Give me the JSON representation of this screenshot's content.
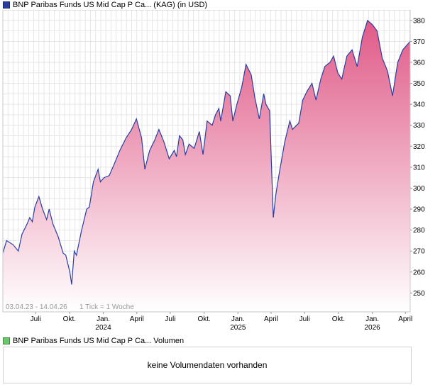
{
  "price_legend": {
    "label": "BNP Paribas Funds US Mid Cap P Ca... (KAG) (in USD)"
  },
  "volume_legend": {
    "label": "BNP Paribas Funds US Mid Cap P Ca... Volumen"
  },
  "volume_panel": {
    "message": "keine Volumendaten vorhanden"
  },
  "chart_data": {
    "type": "area",
    "title": "",
    "date_range": "03.04.23 - 14.04.26",
    "tick_note": "1 Tick = 1 Woche",
    "ylim": [
      241,
      385
    ],
    "y_ticks": [
      250,
      260,
      270,
      280,
      290,
      300,
      310,
      320,
      330,
      340,
      350,
      360,
      370,
      380
    ],
    "x_ticks": [
      {
        "date": "2023-07-01",
        "label": "Juli",
        "year": ""
      },
      {
        "date": "2023-10-01",
        "label": "Okt.",
        "year": ""
      },
      {
        "date": "2024-01-01",
        "label": "Jan.",
        "year": "2024"
      },
      {
        "date": "2024-04-01",
        "label": "April",
        "year": ""
      },
      {
        "date": "2024-07-01",
        "label": "Juli",
        "year": ""
      },
      {
        "date": "2024-10-01",
        "label": "Okt.",
        "year": ""
      },
      {
        "date": "2025-01-01",
        "label": "Jan.",
        "year": "2025"
      },
      {
        "date": "2025-04-01",
        "label": "April",
        "year": ""
      },
      {
        "date": "2025-07-01",
        "label": "Juli",
        "year": ""
      },
      {
        "date": "2025-10-01",
        "label": "Okt.",
        "year": ""
      },
      {
        "date": "2026-01-01",
        "label": "Jan.",
        "year": "2026"
      },
      {
        "date": "2026-04-01",
        "label": "April",
        "year": ""
      }
    ],
    "x_start": "2023-04-03",
    "x_end": "2026-04-14",
    "line_color": "#2a3ea0",
    "fill_top_color": "#e05a88",
    "fill_bottom_color": "#ffffff",
    "grid": true,
    "series": [
      {
        "values": [
          [
            "2023-04-03",
            269
          ],
          [
            "2023-04-13",
            275
          ],
          [
            "2023-05-01",
            273
          ],
          [
            "2023-05-15",
            270
          ],
          [
            "2023-05-25",
            278
          ],
          [
            "2023-06-08",
            283
          ],
          [
            "2023-06-15",
            286
          ],
          [
            "2023-06-22",
            284
          ],
          [
            "2023-06-29",
            291
          ],
          [
            "2023-07-10",
            296
          ],
          [
            "2023-07-20",
            290
          ],
          [
            "2023-07-31",
            285
          ],
          [
            "2023-08-07",
            290
          ],
          [
            "2023-08-17",
            283
          ],
          [
            "2023-08-31",
            277
          ],
          [
            "2023-09-14",
            269
          ],
          [
            "2023-09-21",
            268
          ],
          [
            "2023-10-02",
            260
          ],
          [
            "2023-10-07",
            254
          ],
          [
            "2023-10-14",
            270
          ],
          [
            "2023-10-20",
            268
          ],
          [
            "2023-11-03",
            280
          ],
          [
            "2023-11-17",
            290
          ],
          [
            "2023-11-24",
            291
          ],
          [
            "2023-12-05",
            303
          ],
          [
            "2023-12-18",
            309
          ],
          [
            "2023-12-24",
            303
          ],
          [
            "2024-01-03",
            305
          ],
          [
            "2024-01-17",
            306
          ],
          [
            "2024-02-01",
            312
          ],
          [
            "2024-02-15",
            318
          ],
          [
            "2024-03-03",
            324
          ],
          [
            "2024-03-18",
            328
          ],
          [
            "2024-03-31",
            333
          ],
          [
            "2024-04-14",
            324
          ],
          [
            "2024-04-23",
            309
          ],
          [
            "2024-05-06",
            318
          ],
          [
            "2024-05-20",
            323
          ],
          [
            "2024-05-31",
            328
          ],
          [
            "2024-06-14",
            322
          ],
          [
            "2024-06-28",
            314
          ],
          [
            "2024-07-12",
            318
          ],
          [
            "2024-07-18",
            315
          ],
          [
            "2024-07-26",
            325
          ],
          [
            "2024-08-04",
            323
          ],
          [
            "2024-08-11",
            316
          ],
          [
            "2024-08-21",
            321
          ],
          [
            "2024-09-04",
            319
          ],
          [
            "2024-09-18",
            327
          ],
          [
            "2024-09-28",
            316
          ],
          [
            "2024-10-09",
            332
          ],
          [
            "2024-10-23",
            330
          ],
          [
            "2024-11-01",
            335
          ],
          [
            "2024-11-10",
            338
          ],
          [
            "2024-11-15",
            332
          ],
          [
            "2024-11-29",
            346
          ],
          [
            "2024-12-11",
            344
          ],
          [
            "2024-12-18",
            332
          ],
          [
            "2024-12-29",
            340
          ],
          [
            "2025-01-11",
            348
          ],
          [
            "2025-01-23",
            359
          ],
          [
            "2025-02-06",
            354
          ],
          [
            "2025-02-16",
            343
          ],
          [
            "2025-02-28",
            333
          ],
          [
            "2025-03-12",
            345
          ],
          [
            "2025-03-18",
            340
          ],
          [
            "2025-03-28",
            337
          ],
          [
            "2025-04-07",
            286
          ],
          [
            "2025-04-14",
            297
          ],
          [
            "2025-04-24",
            308
          ],
          [
            "2025-05-08",
            322
          ],
          [
            "2025-05-22",
            332
          ],
          [
            "2025-05-29",
            328
          ],
          [
            "2025-06-15",
            331
          ],
          [
            "2025-06-26",
            342
          ],
          [
            "2025-07-07",
            346
          ],
          [
            "2025-07-21",
            350
          ],
          [
            "2025-08-01",
            342
          ],
          [
            "2025-08-14",
            352
          ],
          [
            "2025-08-25",
            358
          ],
          [
            "2025-09-08",
            360
          ],
          [
            "2025-09-18",
            363
          ],
          [
            "2025-09-29",
            355
          ],
          [
            "2025-10-10",
            352
          ],
          [
            "2025-10-24",
            363
          ],
          [
            "2025-11-07",
            366
          ],
          [
            "2025-11-21",
            358
          ],
          [
            "2025-12-05",
            372
          ],
          [
            "2025-12-19",
            380
          ],
          [
            "2026-01-01",
            378
          ],
          [
            "2026-01-14",
            375
          ],
          [
            "2026-01-28",
            362
          ],
          [
            "2026-02-11",
            356
          ],
          [
            "2026-02-25",
            344
          ],
          [
            "2026-03-11",
            360
          ],
          [
            "2026-03-25",
            366
          ],
          [
            "2026-04-14",
            370
          ]
        ]
      }
    ]
  }
}
